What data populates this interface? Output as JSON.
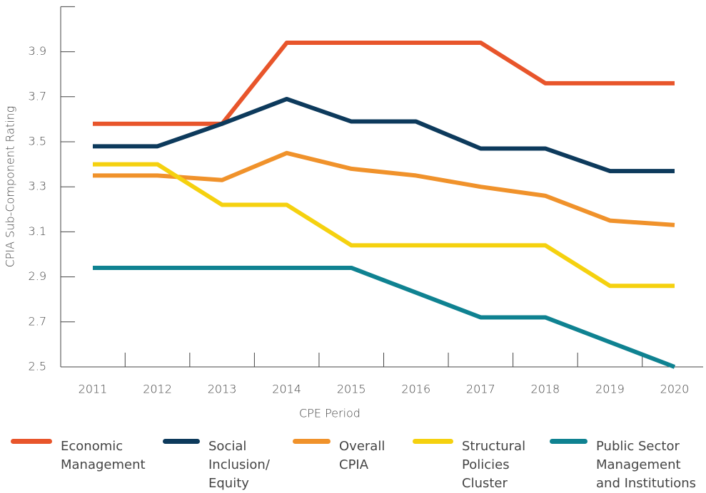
{
  "chart_data": {
    "type": "line",
    "ylabel": "CPIA Sub-Component Rating",
    "xlabel": "CPE Period",
    "categories": [
      "2011",
      "2012",
      "2013",
      "2014",
      "2015",
      "2016",
      "2017",
      "2018",
      "2019",
      "2020"
    ],
    "ylim": [
      2.5,
      4.1
    ],
    "yticks": [
      2.5,
      2.7,
      2.9,
      3.1,
      3.3,
      3.5,
      3.7,
      3.9
    ],
    "series": [
      {
        "name": "Economic Management",
        "color": "#e8552b",
        "values": [
          3.58,
          3.58,
          3.58,
          3.94,
          3.94,
          3.94,
          3.94,
          3.76,
          3.76,
          3.76
        ]
      },
      {
        "name": "Social Inclusion/ Equity",
        "color": "#0d3a5c",
        "values": [
          3.48,
          3.48,
          3.58,
          3.69,
          3.59,
          3.59,
          3.47,
          3.47,
          3.37,
          3.37
        ]
      },
      {
        "name": "Overall CPIA",
        "color": "#f0922b",
        "values": [
          3.35,
          3.35,
          3.33,
          3.45,
          3.38,
          3.35,
          3.3,
          3.26,
          3.15,
          3.13
        ]
      },
      {
        "name": "Structural Policies Cluster",
        "color": "#f5d10f",
        "values": [
          3.4,
          3.4,
          3.22,
          3.22,
          3.04,
          3.04,
          3.04,
          3.04,
          2.86,
          2.86
        ]
      },
      {
        "name": "Public Sector Management and Institutions",
        "color": "#0f8291",
        "values": [
          2.94,
          2.94,
          2.94,
          2.94,
          2.94,
          2.83,
          2.72,
          2.72,
          2.61,
          2.5
        ]
      }
    ]
  }
}
